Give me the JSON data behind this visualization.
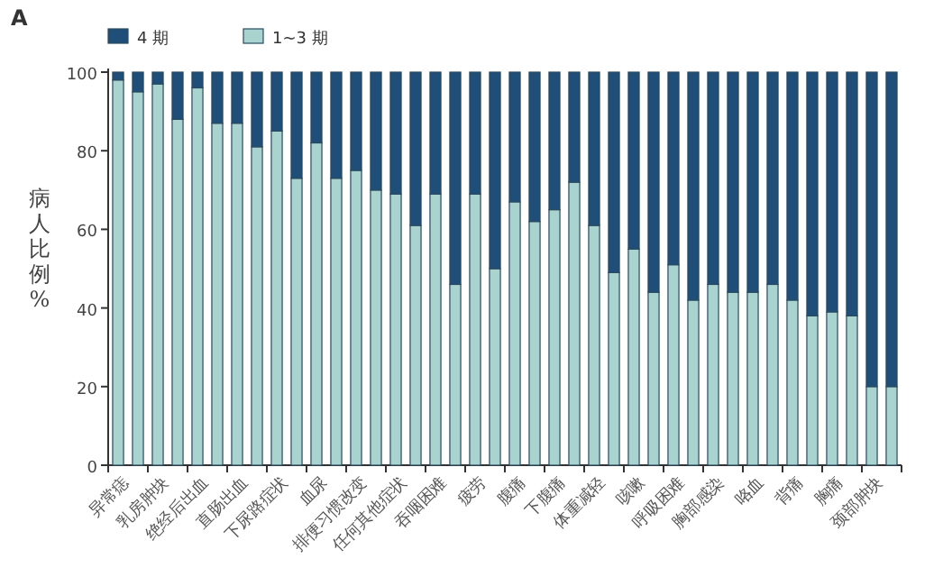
{
  "chart_data": {
    "type": "bar",
    "title": "A",
    "stacked": true,
    "ylabel": "病人比例%",
    "ylim": [
      0,
      100
    ],
    "yticks": [
      0,
      20,
      40,
      60,
      80,
      100
    ],
    "legend": "top left",
    "grid": false,
    "categories": [
      "异常痣",
      null,
      "乳房肿块",
      null,
      "绝经后出血",
      null,
      "直肠出血",
      null,
      "下尿路症状",
      null,
      "血尿",
      null,
      "排便习惯改变",
      null,
      "任何其他症状",
      null,
      "吞咽困难",
      null,
      "疲劳",
      null,
      "腹痛",
      null,
      "下腹痛",
      null,
      "体重减轻",
      null,
      "咳嗽",
      null,
      "呼吸困难",
      null,
      "胸部感染",
      null,
      "咯血",
      null,
      "背痛",
      null,
      "胸痛",
      null,
      "颈部肿块",
      null
    ],
    "series": [
      {
        "name": "1~3 期",
        "color": "#a9d3cf",
        "values": [
          98,
          95,
          97,
          88,
          96,
          87,
          87,
          81,
          85,
          73,
          82,
          73,
          75,
          70,
          69,
          61,
          69,
          46,
          69,
          50,
          67,
          62,
          65,
          72,
          61,
          49,
          55,
          44,
          51,
          42,
          46,
          44,
          44,
          46,
          42,
          38,
          39,
          38,
          20,
          20
        ]
      },
      {
        "name": "4 期",
        "color": "#1f4e79",
        "values": [
          2,
          5,
          3,
          12,
          4,
          13,
          13,
          19,
          15,
          27,
          18,
          27,
          25,
          30,
          31,
          39,
          31,
          54,
          31,
          50,
          33,
          38,
          35,
          28,
          39,
          51,
          45,
          56,
          49,
          58,
          54,
          56,
          56,
          54,
          58,
          62,
          61,
          62,
          80,
          80
        ]
      }
    ]
  }
}
